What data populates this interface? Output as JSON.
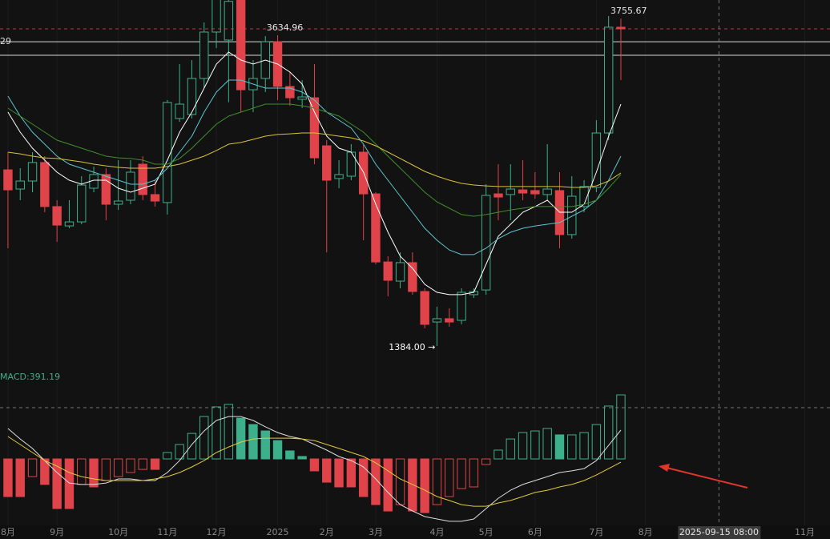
{
  "chart_data": {
    "type": "candlestick",
    "up_color": "#3cb08a",
    "down_color": "#e0434a",
    "xlim": [
      -0.65,
      67.06
    ],
    "ylim": [
      1222,
      3890
    ],
    "grid": true,
    "xticks": [
      {
        "value": 0,
        "label": "8月"
      },
      {
        "value": 4,
        "label": "9月"
      },
      {
        "value": 9,
        "label": "10月"
      },
      {
        "value": 13,
        "label": "11月"
      },
      {
        "value": 17,
        "label": "12月"
      },
      {
        "value": 22,
        "label": "2025"
      },
      {
        "value": 26,
        "label": "2月"
      },
      {
        "value": 30,
        "label": "3月"
      },
      {
        "value": 35,
        "label": "4月"
      },
      {
        "value": 39,
        "label": "5月"
      },
      {
        "value": 43,
        "label": "6月"
      },
      {
        "value": 48,
        "label": "7月"
      },
      {
        "value": 52,
        "label": "8月"
      },
      {
        "value": 65,
        "label": "11月"
      }
    ],
    "candles": {
      "open": [
        2660,
        2521,
        2579,
        2713,
        2394,
        2254,
        2283,
        2527,
        2626,
        2411,
        2440,
        2701,
        2481,
        2423,
        3032,
        3061,
        3322,
        3658,
        3600,
        3900,
        3240,
        3322,
        3588,
        3264,
        3171,
        3182,
        2834,
        2597,
        2614,
        2788,
        2486,
        1993,
        1854,
        1988,
        1779,
        1558,
        1582,
        1570,
        1756,
        1790,
        2486,
        2481,
        2515,
        2510,
        2481,
        2510,
        2191,
        2394,
        2533,
        2927,
        3693
      ],
      "high": [
        2788,
        2672,
        2788,
        2759,
        2440,
        2440,
        2614,
        2684,
        2672,
        2730,
        2730,
        2759,
        2585,
        3165,
        3426,
        3455,
        3728,
        3920,
        3900,
        3950,
        3455,
        3629,
        3634.96,
        3368,
        3310,
        3426,
        2875,
        2730,
        2846,
        2846,
        2498,
        2034,
        2063,
        2063,
        1802,
        1669,
        1657,
        1802,
        1802,
        2556,
        2701,
        2701,
        2730,
        2643,
        2846,
        2643,
        2614,
        2585,
        3020,
        3774,
        3755.67
      ],
      "low": [
        2092,
        2440,
        2498,
        2353,
        2138,
        2237,
        2266,
        2498,
        2295,
        2370,
        2411,
        2440,
        2394,
        2336,
        3008,
        3032,
        3252,
        3542,
        3150,
        3078,
        3078,
        3223,
        3165,
        3124,
        3107,
        2701,
        2063,
        2527,
        2585,
        2150,
        1976,
        1744,
        1802,
        1756,
        1512,
        1384,
        1524,
        1541,
        1732,
        1756,
        2295,
        2295,
        2440,
        2452,
        2440,
        2092,
        2162,
        2353,
        2498,
        2875,
        3310
      ],
      "close": [
        2515,
        2579,
        2713,
        2394,
        2260,
        2283,
        2550,
        2626,
        2411,
        2434,
        2643,
        2481,
        2434,
        3148,
        3136,
        3322,
        3658,
        3900,
        3880,
        3240,
        3322,
        3588,
        3264,
        3182,
        3188,
        2747,
        2585,
        2626,
        2788,
        2486,
        1993,
        1860,
        1988,
        1779,
        1541,
        1582,
        1558,
        1773,
        1779,
        2475,
        2463,
        2521,
        2492,
        2486,
        2521,
        2191,
        2469,
        2539,
        2927,
        3693,
        3681
      ]
    },
    "moving_averages": [
      {
        "color": "#ffffff",
        "values": [
          3078,
          2933,
          2817,
          2730,
          2643,
          2585,
          2556,
          2585,
          2585,
          2527,
          2498,
          2527,
          2556,
          2730,
          2933,
          3078,
          3252,
          3426,
          3513,
          3455,
          3426,
          3455,
          3426,
          3368,
          3281,
          3078,
          2904,
          2817,
          2788,
          2643,
          2411,
          2208,
          2034,
          1947,
          1831,
          1773,
          1756,
          1756,
          1773,
          1976,
          2179,
          2266,
          2353,
          2394,
          2440,
          2353,
          2353,
          2411,
          2643,
          2904,
          3136
        ]
      },
      {
        "color": "#5cc6d0",
        "values": [
          3194,
          3049,
          2933,
          2846,
          2759,
          2701,
          2672,
          2643,
          2614,
          2585,
          2556,
          2556,
          2585,
          2672,
          2788,
          2904,
          3078,
          3223,
          3310,
          3310,
          3281,
          3252,
          3252,
          3252,
          3223,
          3165,
          3078,
          3020,
          2962,
          2846,
          2701,
          2585,
          2469,
          2353,
          2237,
          2150,
          2080,
          2046,
          2046,
          2092,
          2162,
          2208,
          2237,
          2254,
          2266,
          2278,
          2324,
          2370,
          2440,
          2585,
          2759
        ]
      },
      {
        "color": "#3f8f2c",
        "values": [
          3107,
          3049,
          2991,
          2933,
          2875,
          2846,
          2817,
          2788,
          2759,
          2747,
          2742,
          2730,
          2701,
          2701,
          2742,
          2817,
          2904,
          2991,
          3049,
          3078,
          3107,
          3136,
          3136,
          3136,
          3124,
          3107,
          3078,
          3049,
          2991,
          2933,
          2846,
          2759,
          2672,
          2585,
          2498,
          2428,
          2382,
          2336,
          2324,
          2336,
          2353,
          2370,
          2382,
          2394,
          2394,
          2394,
          2394,
          2411,
          2440,
          2527,
          2626
        ]
      },
      {
        "color": "#d8c23a",
        "values": [
          2788,
          2776,
          2759,
          2747,
          2742,
          2730,
          2718,
          2701,
          2689,
          2678,
          2672,
          2672,
          2672,
          2684,
          2701,
          2730,
          2759,
          2800,
          2846,
          2858,
          2881,
          2904,
          2916,
          2921,
          2927,
          2927,
          2916,
          2904,
          2892,
          2869,
          2834,
          2788,
          2742,
          2695,
          2649,
          2614,
          2585,
          2562,
          2550,
          2544,
          2539,
          2539,
          2539,
          2539,
          2539,
          2539,
          2533,
          2533,
          2544,
          2579,
          2637
        ]
      }
    ],
    "price_lines": [
      3588,
      3490
    ],
    "price_line_label": "29",
    "low_label": "1384.00 →",
    "crosshair": {
      "x": 58,
      "label": "2025-09-15 08:00",
      "value": 313
    },
    "macd": {
      "label": "MACD:391.19",
      "ylim": [
        -401,
        455
      ],
      "histogram": [
        -230,
        -230,
        -108,
        -156,
        -303,
        -303,
        -156,
        -171,
        -132,
        -108,
        -83,
        -64,
        -64,
        39,
        88,
        156,
        259,
        318,
        333,
        249,
        210,
        171,
        112,
        49,
        15,
        -73,
        -142,
        -171,
        -171,
        -230,
        -279,
        -318,
        -279,
        -318,
        -328,
        -279,
        -230,
        -181,
        -171,
        -34,
        54,
        122,
        161,
        171,
        186,
        147,
        147,
        161,
        210,
        323,
        391.19
      ],
      "dif": {
        "color": "#dddddd",
        "values": [
          186,
          122,
          64,
          -10,
          -83,
          -147,
          -156,
          -156,
          -147,
          -122,
          -122,
          -132,
          -132,
          -83,
          -10,
          88,
          171,
          235,
          259,
          259,
          235,
          196,
          161,
          137,
          122,
          88,
          54,
          15,
          -10,
          -49,
          -122,
          -205,
          -279,
          -318,
          -352,
          -367,
          -381,
          -381,
          -367,
          -303,
          -240,
          -191,
          -156,
          -132,
          -108,
          -83,
          -73,
          -59,
          -10,
          83,
          176
        ]
      },
      "dea": {
        "color": "#e2c93c",
        "values": [
          137,
          88,
          39,
          -10,
          -44,
          -83,
          -108,
          -122,
          -132,
          -132,
          -132,
          -132,
          -122,
          -108,
          -83,
          -49,
          -10,
          39,
          73,
          103,
          122,
          127,
          127,
          127,
          122,
          112,
          88,
          64,
          39,
          15,
          -24,
          -73,
          -122,
          -156,
          -191,
          -230,
          -254,
          -279,
          -289,
          -289,
          -269,
          -254,
          -230,
          -205,
          -191,
          -171,
          -156,
          -132,
          -98,
          -59,
          -20
        ]
      }
    }
  }
}
